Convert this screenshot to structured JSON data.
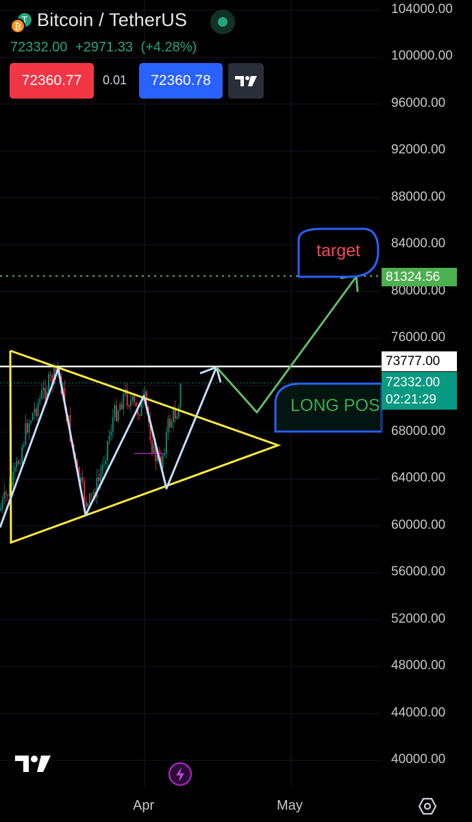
{
  "header": {
    "title": "Bitcoin / TetherUS",
    "icon": "bitcoin-tether-icon",
    "status": "market-open-dot"
  },
  "quote": {
    "last": "72332.00",
    "change": "+2971.33",
    "change_pct": "(+4.28%)"
  },
  "trade": {
    "sell_price": "72360.77",
    "spread": "0.01",
    "buy_price": "72360.78",
    "brand_icon": "tradingview-icon"
  },
  "price_axis": {
    "labels": [
      "104000.00",
      "100000.00",
      "96000.00",
      "92000.00",
      "88000.00",
      "84000.00",
      "80000.00",
      "76000.00",
      "68000.00",
      "64000.00",
      "60000.00",
      "56000.00",
      "52000.00",
      "48000.00",
      "44000.00",
      "40000.00"
    ],
    "target_tag": "81324.56",
    "resistance_tag": "73777.00",
    "current_price": "72332.00",
    "countdown": "02:21:29"
  },
  "time_axis": {
    "labels": [
      "Apr",
      "May"
    ]
  },
  "annotations": {
    "target_label": "target",
    "long_label": "LONG POS"
  },
  "colors": {
    "up": "#089981",
    "down": "#f23645",
    "triangle": "#ffeb3b",
    "zigzag": "#c7dcff",
    "projection": "#66bb6a",
    "callout_border": "#2962ff",
    "accent_blue": "#2962ff"
  },
  "footer": {
    "logo": "tradingview-logo-icon",
    "replay": "lightning-icon",
    "settings": "settings-icon"
  }
}
